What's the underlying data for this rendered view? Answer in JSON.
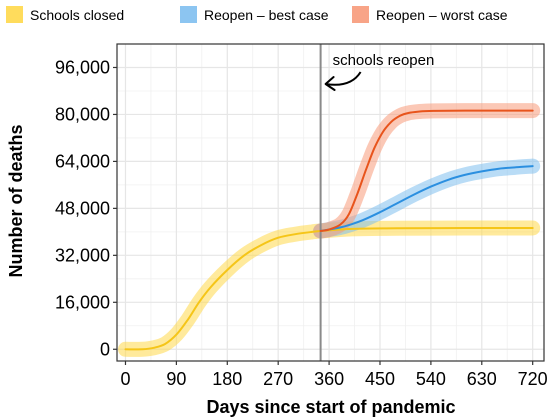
{
  "chart_data": {
    "type": "line",
    "xlabel": "Days since start of pandemic",
    "ylabel": "Number of deaths",
    "xlim": [
      -15,
      740
    ],
    "ylim": [
      -4000,
      104000
    ],
    "x_ticks": [
      0,
      90,
      180,
      270,
      360,
      450,
      540,
      630,
      720
    ],
    "x_tick_labels": [
      "0",
      "90",
      "180",
      "270",
      "360",
      "450",
      "540",
      "630",
      "720"
    ],
    "y_ticks": [
      0,
      16000,
      32000,
      48000,
      64000,
      80000,
      96000
    ],
    "y_tick_labels": [
      "0",
      "16,000",
      "32,000",
      "48,000",
      "64,000",
      "80,000",
      "96,000"
    ],
    "grid": true,
    "legend_position": "top",
    "reopen_day": 345,
    "annotation": "schools reopen",
    "series": [
      {
        "name": "Schools closed",
        "color": "#f5c518",
        "band_color": "#ffd84a",
        "x": [
          0,
          30,
          50,
          70,
          90,
          110,
          130,
          150,
          180,
          210,
          240,
          270,
          300,
          330,
          345,
          400,
          480,
          600,
          720
        ],
        "y": [
          0,
          0,
          500,
          1800,
          5000,
          10000,
          16000,
          21000,
          27000,
          32000,
          35500,
          38000,
          39200,
          40000,
          40300,
          41000,
          41200,
          41300,
          41300
        ]
      },
      {
        "name": "Reopen – best case",
        "color": "#2b8fe0",
        "band_color": "#7fbfef",
        "x": [
          345,
          360,
          380,
          400,
          420,
          450,
          480,
          510,
          540,
          570,
          600,
          630,
          660,
          690,
          720
        ],
        "y": [
          40300,
          40800,
          41500,
          42600,
          44000,
          46700,
          49700,
          52700,
          55400,
          57700,
          59400,
          60600,
          61500,
          62000,
          62400
        ]
      },
      {
        "name": "Reopen – worst case",
        "color": "#e8541c",
        "band_color": "#f79a7a",
        "x": [
          345,
          360,
          380,
          395,
          410,
          425,
          440,
          455,
          470,
          485,
          500,
          520,
          545,
          600,
          720
        ],
        "y": [
          40300,
          40800,
          42500,
          46000,
          53000,
          61000,
          68500,
          74000,
          77500,
          79500,
          80500,
          81000,
          81200,
          81300,
          81300
        ]
      }
    ]
  }
}
